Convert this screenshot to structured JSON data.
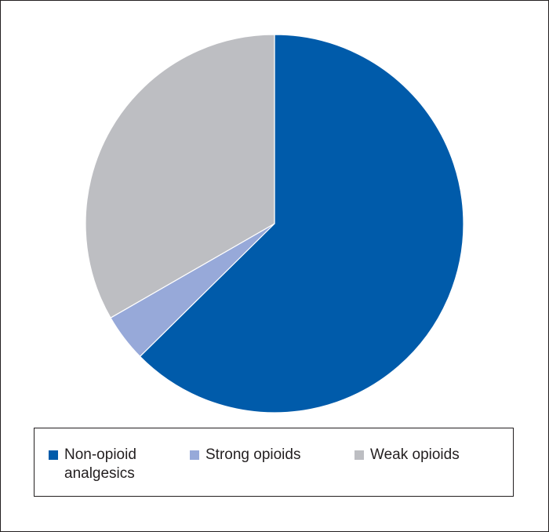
{
  "chart_data": {
    "type": "pie",
    "categories": [
      "Non-opioid analgesics",
      "Strong opioids",
      "Weak opioids"
    ],
    "values": [
      62.6,
      4.1,
      33.3
    ],
    "colors": [
      "#005baa",
      "#97a9d9",
      "#bdbec2"
    ],
    "legend": "bottom"
  }
}
